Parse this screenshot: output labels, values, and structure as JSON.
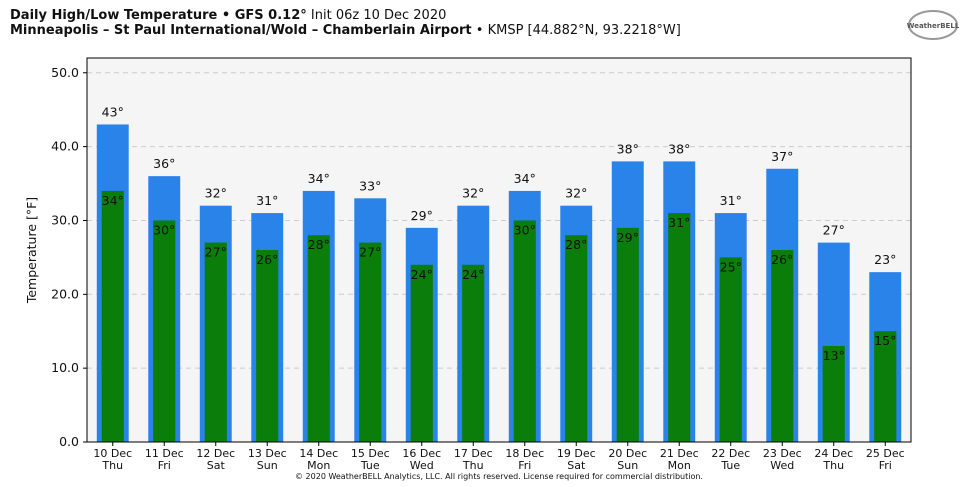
{
  "chart_data": {
    "type": "bar",
    "title": "Daily High/Low Temperature • GFS 0.12°",
    "title_init": "Init 06z 10 Dec 2020",
    "subtitle": "Minneapolis – St Paul International/Wold – Chamberlain Airport",
    "subtitle_station": "• KMSP [44.882°N, 93.2218°W]",
    "logo": "WeatherBELL",
    "copyright": "© 2020 WeatherBELL Analytics, LLC. All rights reserved. License required for commercial distribution.",
    "y_label": "Temperature [°F]",
    "categories": [
      "10 Dec",
      "11 Dec",
      "12 Dec",
      "13 Dec",
      "14 Dec",
      "15 Dec",
      "16 Dec",
      "17 Dec",
      "18 Dec",
      "19 Dec",
      "20 Dec",
      "21 Dec",
      "22 Dec",
      "23 Dec",
      "24 Dec",
      "25 Dec"
    ],
    "weekdays": [
      "Thu",
      "Fri",
      "Sat",
      "Sun",
      "Mon",
      "Tue",
      "Wed",
      "Thu",
      "Fri",
      "Sat",
      "Sun",
      "Mon",
      "Tue",
      "Wed",
      "Thu",
      "Fri"
    ],
    "series": [
      {
        "color": "#2a83e8",
        "values": [
          43,
          36,
          32,
          31,
          34,
          33,
          29,
          32,
          34,
          32,
          38,
          38,
          31,
          37,
          27,
          23
        ],
        "value_labels": [
          "43°",
          "36°",
          "32°",
          "31°",
          "34°",
          "33°",
          "29°",
          "32°",
          "34°",
          "32°",
          "38°",
          "38°",
          "31°",
          "37°",
          "27°",
          "23°"
        ]
      },
      {
        "color": "#0a7d0a",
        "values": [
          34,
          30,
          27,
          26,
          28,
          27,
          24,
          24,
          30,
          28,
          29,
          31,
          25,
          26,
          13,
          15
        ],
        "value_labels": [
          "34°",
          "30°",
          "27°",
          "26°",
          "28°",
          "27°",
          "24°",
          "24°",
          "30°",
          "28°",
          "29°",
          "31°",
          "25°",
          "26°",
          "13°",
          "15°"
        ]
      }
    ],
    "ylim": [
      0,
      52
    ],
    "yticks": [
      {
        "value": 0,
        "label": "0.0"
      },
      {
        "value": 10,
        "label": "10.0"
      },
      {
        "value": 20,
        "label": "20.0"
      },
      {
        "value": 30,
        "label": "30.0"
      },
      {
        "value": 40,
        "label": "40.0"
      },
      {
        "value": 50,
        "label": "50.0"
      }
    ],
    "grid": true
  }
}
